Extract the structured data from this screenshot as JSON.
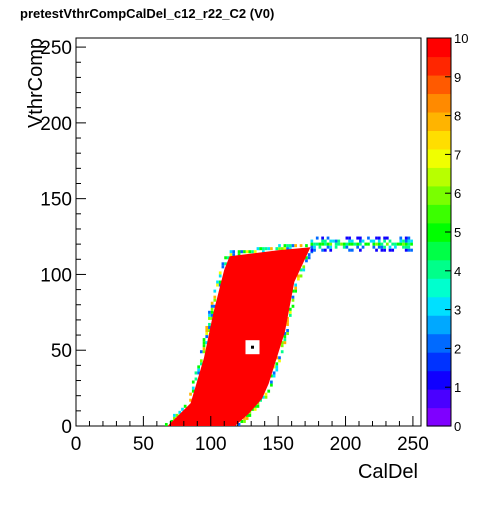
{
  "chart_data": {
    "type": "heatmap",
    "title": "pretestVthrCompCalDel_c12_r22_C2 (V0)",
    "xlabel": "CalDel",
    "ylabel": "VthrComp",
    "xlim": [
      0,
      256
    ],
    "ylim": [
      0,
      256
    ],
    "x_ticks": [
      "0",
      "50",
      "100",
      "150",
      "200",
      "250"
    ],
    "y_ticks": [
      "0",
      "50",
      "100",
      "150",
      "200",
      "250"
    ],
    "color_scale": {
      "min": 0,
      "max": 10,
      "ticks": [
        "0",
        "1",
        "2",
        "3",
        "4",
        "5",
        "6",
        "7",
        "8",
        "9",
        "10"
      ],
      "colors": [
        "#7f00ff",
        "#4a00ff",
        "#1000ff",
        "#0033ff",
        "#006aff",
        "#00a8ff",
        "#00e0ff",
        "#00ffce",
        "#00ff8a",
        "#00ff47",
        "#00ff00",
        "#3bff00",
        "#7aff00",
        "#b8ff00",
        "#f0ff00",
        "#ffde00",
        "#ffb400",
        "#ff8a00",
        "#ff5a00",
        "#ff2600",
        "#ff0000"
      ]
    },
    "saturated_region": {
      "value": 10,
      "boundary": [
        [
          68,
          0
        ],
        [
          85,
          15
        ],
        [
          95,
          45
        ],
        [
          102,
          75
        ],
        [
          110,
          103
        ],
        [
          114,
          112
        ],
        [
          150,
          116
        ],
        [
          174,
          118
        ],
        [
          162,
          95
        ],
        [
          155,
          62
        ],
        [
          143,
          28
        ],
        [
          138,
          18
        ],
        [
          128,
          8
        ],
        [
          118,
          0
        ]
      ]
    },
    "plateau_band": {
      "x_range": [
        174,
        250
      ],
      "y_center": 120,
      "values": "1-6"
    },
    "marker": {
      "x": 131,
      "y": 52
    },
    "grid": false,
    "legend": "colorbar right"
  }
}
